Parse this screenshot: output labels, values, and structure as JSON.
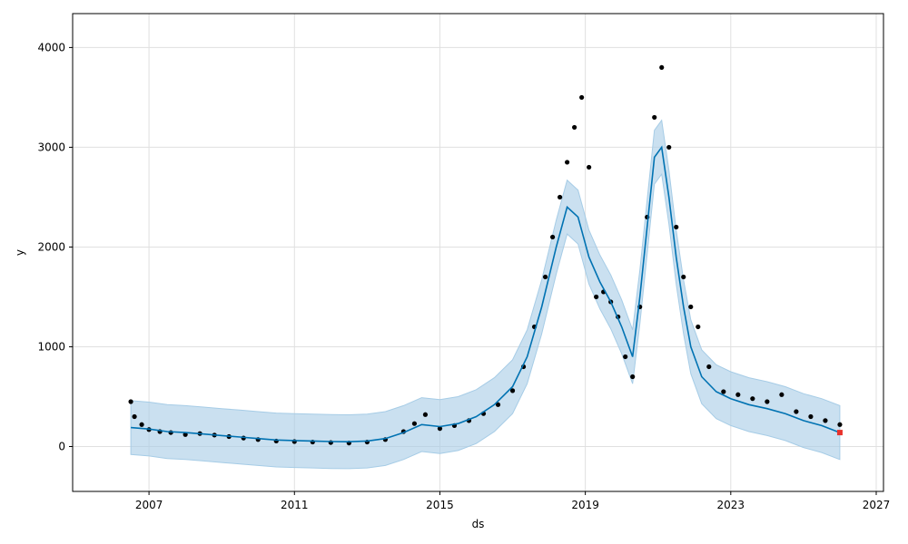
{
  "chart_data": {
    "type": "scatter",
    "title": "",
    "xlabel": "ds",
    "ylabel": "y",
    "xlim": [
      2004.9,
      2027.2
    ],
    "ylim": [
      -450,
      4340
    ],
    "x_ticks": [
      2007,
      2011,
      2015,
      2019,
      2023,
      2027
    ],
    "y_ticks": [
      0,
      1000,
      2000,
      3000,
      4000
    ],
    "grid": true,
    "colors": {
      "observed": "#000000",
      "forecast_line": "#0072B2",
      "uncertainty_band": "#A6CCE6",
      "highlight": "#E8322C"
    },
    "series": [
      {
        "role": "observed",
        "x": [
          2006.5,
          2006.6,
          2006.8,
          2007.0,
          2007.3,
          2007.6,
          2008.0,
          2008.4,
          2008.8,
          2009.2,
          2009.6,
          2010.0,
          2010.5,
          2011.0,
          2011.5,
          2012.0,
          2012.5,
          2013.0,
          2013.5,
          2014.0,
          2014.3,
          2014.6,
          2015.0,
          2015.4,
          2015.8,
          2016.2,
          2016.6,
          2017.0,
          2017.3,
          2017.6,
          2017.9,
          2018.1,
          2018.3,
          2018.5,
          2018.7,
          2018.9,
          2019.1,
          2019.3,
          2019.5,
          2019.7,
          2019.9,
          2020.1,
          2020.3,
          2020.5,
          2020.7,
          2020.9,
          2021.1,
          2021.3,
          2021.5,
          2021.7,
          2021.9,
          2022.1,
          2022.4,
          2022.8,
          2023.2,
          2023.6,
          2024.0,
          2024.4,
          2024.8,
          2025.2,
          2025.6,
          2026.0
        ],
        "y": [
          450,
          300,
          220,
          170,
          150,
          140,
          120,
          130,
          115,
          100,
          85,
          70,
          55,
          50,
          45,
          40,
          35,
          45,
          70,
          150,
          230,
          320,
          180,
          210,
          260,
          330,
          420,
          560,
          800,
          1200,
          1700,
          2100,
          2500,
          2850,
          3200,
          3500,
          2800,
          1500,
          1550,
          1450,
          1300,
          900,
          700,
          1400,
          2300,
          3300,
          3800,
          3000,
          2200,
          1700,
          1400,
          1200,
          800,
          550,
          520,
          480,
          450,
          520,
          350,
          300,
          260,
          220
        ]
      },
      {
        "role": "forecast",
        "x": [
          2006.5,
          2007.0,
          2007.5,
          2008.0,
          2008.5,
          2009.0,
          2009.5,
          2010.0,
          2010.5,
          2011.0,
          2011.5,
          2012.0,
          2012.5,
          2013.0,
          2013.5,
          2014.0,
          2014.5,
          2015.0,
          2015.5,
          2016.0,
          2016.5,
          2017.0,
          2017.4,
          2017.8,
          2018.2,
          2018.5,
          2018.8,
          2019.1,
          2019.4,
          2019.7,
          2020.0,
          2020.3,
          2020.5,
          2020.7,
          2020.9,
          2021.1,
          2021.3,
          2021.5,
          2021.7,
          2021.9,
          2022.2,
          2022.6,
          2023.0,
          2023.5,
          2024.0,
          2024.5,
          2025.0,
          2025.5,
          2026.0
        ],
        "y": [
          190,
          175,
          150,
          140,
          125,
          110,
          95,
          80,
          65,
          60,
          55,
          50,
          48,
          55,
          80,
          140,
          220,
          200,
          230,
          300,
          420,
          600,
          900,
          1400,
          2000,
          2400,
          2300,
          1900,
          1650,
          1450,
          1200,
          900,
          1500,
          2200,
          2900,
          3000,
          2500,
          1900,
          1400,
          1000,
          700,
          550,
          480,
          420,
          380,
          330,
          260,
          210,
          140
        ],
        "lower": [
          -80,
          -95,
          -120,
          -130,
          -145,
          -160,
          -175,
          -190,
          -205,
          -210,
          -215,
          -220,
          -222,
          -215,
          -190,
          -130,
          -50,
          -70,
          -40,
          30,
          150,
          330,
          630,
          1130,
          1730,
          2130,
          2030,
          1630,
          1380,
          1180,
          930,
          630,
          1230,
          1930,
          2630,
          2730,
          2230,
          1630,
          1130,
          730,
          430,
          280,
          210,
          150,
          110,
          60,
          -10,
          -60,
          -130
        ],
        "upper": [
          460,
          445,
          420,
          410,
          395,
          380,
          365,
          350,
          335,
          330,
          325,
          320,
          318,
          325,
          350,
          410,
          490,
          470,
          500,
          570,
          690,
          870,
          1170,
          1670,
          2270,
          2670,
          2570,
          2170,
          1920,
          1720,
          1470,
          1170,
          1770,
          2470,
          3170,
          3270,
          2770,
          2170,
          1670,
          1270,
          970,
          820,
          750,
          690,
          650,
          600,
          530,
          480,
          410
        ]
      },
      {
        "role": "latest",
        "x": [
          2026.0
        ],
        "y": [
          140
        ]
      }
    ]
  }
}
